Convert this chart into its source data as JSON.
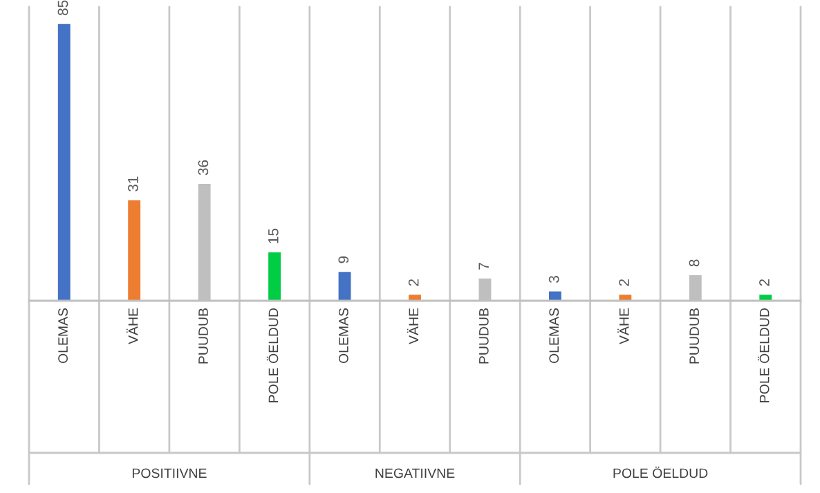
{
  "chart_data": {
    "type": "bar",
    "categories": [
      "OLEMAS",
      "VÄHE",
      "PUUDUB",
      "POLE ÖELDUD",
      "OLEMAS",
      "VÄHE",
      "PUUDUB",
      "OLEMAS",
      "VÄHE",
      "PUUDUB",
      "POLE ÖELDUD"
    ],
    "values": [
      85,
      31,
      36,
      15,
      9,
      2,
      7,
      3,
      2,
      8,
      2
    ],
    "colors": [
      "#4472c4",
      "#ed7d31",
      "#bfbfbf",
      "#00cc44",
      "#4472c4",
      "#ed7d31",
      "#bfbfbf",
      "#4472c4",
      "#ed7d31",
      "#bfbfbf",
      "#00cc44"
    ],
    "annotations": [
      "POSITIIVNE",
      "NEGATIIVNE",
      "POLE ÖELDUD"
    ],
    "data_labels": true
  }
}
